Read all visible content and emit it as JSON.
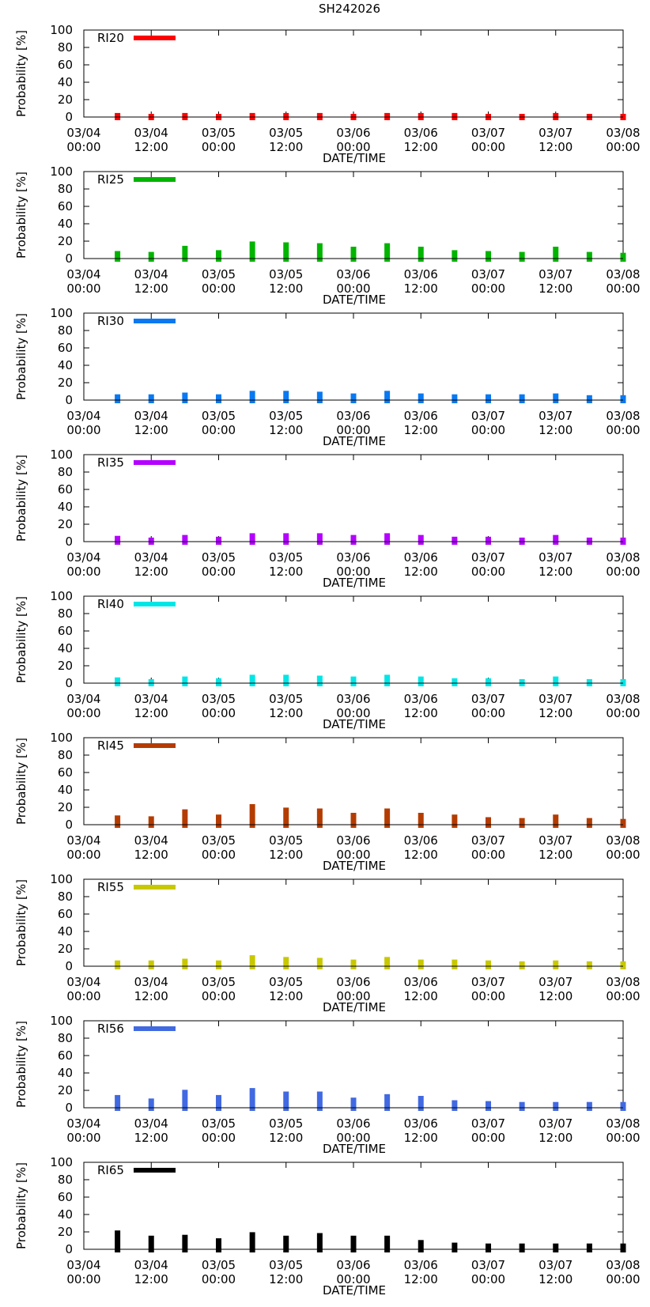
{
  "figure_title": "SH242026",
  "chart_data": [
    {
      "type": "bar",
      "title": "SH242026",
      "legend": "RI20",
      "color": "#ff0000",
      "xlabel": "DATE/TIME",
      "ylabel": "Probability [%]",
      "ylim": [
        0,
        100
      ],
      "yticks": [
        "0",
        "20",
        "40",
        "60",
        "80",
        "100"
      ],
      "xticks": [
        [
          "03/04",
          "00:00"
        ],
        [
          "03/04",
          "12:00"
        ],
        [
          "03/05",
          "00:00"
        ],
        [
          "03/05",
          "12:00"
        ],
        [
          "03/06",
          "00:00"
        ],
        [
          "03/06",
          "12:00"
        ],
        [
          "03/07",
          "00:00"
        ],
        [
          "03/07",
          "12:00"
        ],
        [
          "03/08",
          "00:00"
        ]
      ],
      "x_hours": [
        6,
        12,
        18,
        24,
        30,
        36,
        42,
        48,
        54,
        60,
        66,
        72,
        78,
        84,
        90,
        96
      ],
      "values": [
        1,
        0,
        1,
        0,
        1,
        1,
        1,
        0,
        1,
        1,
        1,
        0,
        0,
        1,
        0,
        0
      ],
      "legend_position": "top-left"
    },
    {
      "type": "bar",
      "legend": "RI25",
      "color": "#00b400",
      "xlabel": "DATE/TIME",
      "ylabel": "Probability [%]",
      "ylim": [
        0,
        100
      ],
      "yticks": [
        "0",
        "20",
        "40",
        "60",
        "80",
        "100"
      ],
      "xticks": [
        [
          "03/04",
          "00:00"
        ],
        [
          "03/04",
          "12:00"
        ],
        [
          "03/05",
          "00:00"
        ],
        [
          "03/05",
          "12:00"
        ],
        [
          "03/06",
          "00:00"
        ],
        [
          "03/06",
          "12:00"
        ],
        [
          "03/07",
          "00:00"
        ],
        [
          "03/07",
          "12:00"
        ],
        [
          "03/08",
          "00:00"
        ]
      ],
      "x_hours": [
        6,
        12,
        18,
        24,
        30,
        36,
        42,
        48,
        54,
        60,
        66,
        72,
        78,
        84,
        90,
        96
      ],
      "values": [
        5,
        4,
        11,
        6,
        16,
        15,
        14,
        10,
        14,
        10,
        6,
        5,
        4,
        10,
        4,
        3
      ],
      "legend_position": "top-left"
    },
    {
      "type": "bar",
      "legend": "RI30",
      "color": "#0a78f0",
      "xlabel": "DATE/TIME",
      "ylabel": "Probability [%]",
      "ylim": [
        0,
        100
      ],
      "yticks": [
        "0",
        "20",
        "40",
        "60",
        "80",
        "100"
      ],
      "xticks": [
        [
          "03/04",
          "00:00"
        ],
        [
          "03/04",
          "12:00"
        ],
        [
          "03/05",
          "00:00"
        ],
        [
          "03/05",
          "12:00"
        ],
        [
          "03/06",
          "00:00"
        ],
        [
          "03/06",
          "12:00"
        ],
        [
          "03/07",
          "00:00"
        ],
        [
          "03/07",
          "12:00"
        ],
        [
          "03/08",
          "00:00"
        ]
      ],
      "x_hours": [
        6,
        12,
        18,
        24,
        30,
        36,
        42,
        48,
        54,
        60,
        66,
        72,
        78,
        84,
        90,
        96
      ],
      "values": [
        3,
        3,
        5,
        3,
        7,
        7,
        6,
        4,
        7,
        4,
        3,
        3,
        3,
        4,
        2,
        2
      ],
      "legend_position": "top-left"
    },
    {
      "type": "bar",
      "legend": "RI35",
      "color": "#b400ff",
      "xlabel": "DATE/TIME",
      "ylabel": "Probability [%]",
      "ylim": [
        0,
        100
      ],
      "yticks": [
        "0",
        "20",
        "40",
        "60",
        "80",
        "100"
      ],
      "xticks": [
        [
          "03/04",
          "00:00"
        ],
        [
          "03/04",
          "12:00"
        ],
        [
          "03/05",
          "00:00"
        ],
        [
          "03/05",
          "12:00"
        ],
        [
          "03/06",
          "00:00"
        ],
        [
          "03/06",
          "12:00"
        ],
        [
          "03/07",
          "00:00"
        ],
        [
          "03/07",
          "12:00"
        ],
        [
          "03/08",
          "00:00"
        ]
      ],
      "x_hours": [
        6,
        12,
        18,
        24,
        30,
        36,
        42,
        48,
        54,
        60,
        66,
        72,
        78,
        84,
        90,
        96
      ],
      "values": [
        3,
        1,
        4,
        2,
        6,
        6,
        6,
        4,
        6,
        4,
        2,
        2,
        1,
        4,
        1,
        1
      ],
      "legend_position": "top-left"
    },
    {
      "type": "bar",
      "legend": "RI40",
      "color": "#00e6e6",
      "xlabel": "DATE/TIME",
      "ylabel": "Probability [%]",
      "ylim": [
        0,
        100
      ],
      "yticks": [
        "0",
        "20",
        "40",
        "60",
        "80",
        "100"
      ],
      "xticks": [
        [
          "03/04",
          "00:00"
        ],
        [
          "03/04",
          "12:00"
        ],
        [
          "03/05",
          "00:00"
        ],
        [
          "03/05",
          "12:00"
        ],
        [
          "03/06",
          "00:00"
        ],
        [
          "03/06",
          "12:00"
        ],
        [
          "03/07",
          "00:00"
        ],
        [
          "03/07",
          "12:00"
        ],
        [
          "03/08",
          "00:00"
        ]
      ],
      "x_hours": [
        6,
        12,
        18,
        24,
        30,
        36,
        42,
        48,
        54,
        60,
        66,
        72,
        78,
        84,
        90,
        96
      ],
      "values": [
        3,
        1,
        4,
        2,
        6,
        6,
        5,
        4,
        6,
        4,
        2,
        2,
        1,
        4,
        1,
        1
      ],
      "legend_position": "top-left"
    },
    {
      "type": "bar",
      "legend": "RI45",
      "color": "#b43c00",
      "xlabel": "DATE/TIME",
      "ylabel": "Probability [%]",
      "ylim": [
        0,
        100
      ],
      "yticks": [
        "0",
        "20",
        "40",
        "60",
        "80",
        "100"
      ],
      "xticks": [
        [
          "03/04",
          "00:00"
        ],
        [
          "03/04",
          "12:00"
        ],
        [
          "03/05",
          "00:00"
        ],
        [
          "03/05",
          "12:00"
        ],
        [
          "03/06",
          "00:00"
        ],
        [
          "03/06",
          "12:00"
        ],
        [
          "03/07",
          "00:00"
        ],
        [
          "03/07",
          "12:00"
        ],
        [
          "03/08",
          "00:00"
        ]
      ],
      "x_hours": [
        6,
        12,
        18,
        24,
        30,
        36,
        42,
        48,
        54,
        60,
        66,
        72,
        78,
        84,
        90,
        96
      ],
      "values": [
        7,
        6,
        14,
        8,
        20,
        16,
        15,
        10,
        15,
        10,
        8,
        5,
        4,
        8,
        4,
        3
      ],
      "legend_position": "top-left"
    },
    {
      "type": "bar",
      "legend": "RI55",
      "color": "#c8c800",
      "xlabel": "DATE/TIME",
      "ylabel": "Probability [%]",
      "ylim": [
        0,
        100
      ],
      "yticks": [
        "0",
        "20",
        "40",
        "60",
        "80",
        "100"
      ],
      "xticks": [
        [
          "03/04",
          "00:00"
        ],
        [
          "03/04",
          "12:00"
        ],
        [
          "03/05",
          "00:00"
        ],
        [
          "03/05",
          "12:00"
        ],
        [
          "03/06",
          "00:00"
        ],
        [
          "03/06",
          "12:00"
        ],
        [
          "03/07",
          "00:00"
        ],
        [
          "03/07",
          "12:00"
        ],
        [
          "03/08",
          "00:00"
        ]
      ],
      "x_hours": [
        6,
        12,
        18,
        24,
        30,
        36,
        42,
        48,
        54,
        60,
        66,
        72,
        78,
        84,
        90,
        96
      ],
      "values": [
        3,
        3,
        5,
        3,
        9,
        7,
        6,
        4,
        7,
        4,
        4,
        3,
        2,
        3,
        2,
        2
      ],
      "legend_position": "top-left"
    },
    {
      "type": "bar",
      "legend": "RI56",
      "color": "#4169e1",
      "xlabel": "DATE/TIME",
      "ylabel": "Probability [%]",
      "ylim": [
        0,
        100
      ],
      "yticks": [
        "0",
        "20",
        "40",
        "60",
        "80",
        "100"
      ],
      "xticks": [
        [
          "03/04",
          "00:00"
        ],
        [
          "03/04",
          "12:00"
        ],
        [
          "03/05",
          "00:00"
        ],
        [
          "03/05",
          "12:00"
        ],
        [
          "03/06",
          "00:00"
        ],
        [
          "03/06",
          "12:00"
        ],
        [
          "03/07",
          "00:00"
        ],
        [
          "03/07",
          "12:00"
        ],
        [
          "03/08",
          "00:00"
        ]
      ],
      "x_hours": [
        6,
        12,
        18,
        24,
        30,
        36,
        42,
        48,
        54,
        60,
        66,
        72,
        78,
        84,
        90,
        96
      ],
      "values": [
        11,
        7,
        17,
        11,
        19,
        15,
        15,
        8,
        12,
        10,
        5,
        4,
        3,
        3,
        3,
        3
      ],
      "legend_position": "top-left"
    },
    {
      "type": "bar",
      "legend": "RI65",
      "color": "#000000",
      "xlabel": "DATE/TIME",
      "ylabel": "Probability [%]",
      "ylim": [
        0,
        100
      ],
      "yticks": [
        "0",
        "20",
        "40",
        "60",
        "80",
        "100"
      ],
      "xticks": [
        [
          "03/04",
          "00:00"
        ],
        [
          "03/04",
          "12:00"
        ],
        [
          "03/05",
          "00:00"
        ],
        [
          "03/05",
          "12:00"
        ],
        [
          "03/06",
          "00:00"
        ],
        [
          "03/06",
          "12:00"
        ],
        [
          "03/07",
          "00:00"
        ],
        [
          "03/07",
          "12:00"
        ],
        [
          "03/08",
          "00:00"
        ]
      ],
      "x_hours": [
        6,
        12,
        18,
        24,
        30,
        36,
        42,
        48,
        54,
        60,
        66,
        72,
        78,
        84,
        90,
        96
      ],
      "values": [
        18,
        12,
        13,
        9,
        16,
        12,
        15,
        12,
        12,
        7,
        4,
        3,
        3,
        3,
        3,
        3
      ],
      "legend_position": "top-left"
    }
  ]
}
